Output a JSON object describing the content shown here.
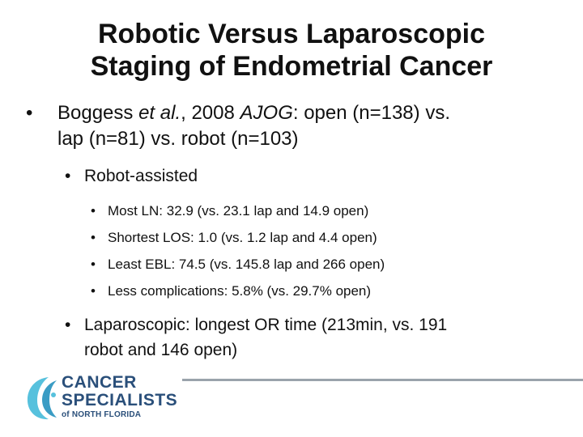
{
  "slide": {
    "title_lines": [
      "Robotic Versus Laparoscopic",
      "Staging of Endometrial Cancer"
    ],
    "bullet_glyph": "•",
    "level1": {
      "prefix": "Boggess ",
      "italic1": "et al.",
      "mid": ", 2008 ",
      "italic2": "AJOG",
      "rest_line1": ": open (n=138) vs.",
      "line2": "lap (n=81) vs. robot (n=103)"
    },
    "level2_robot": "Robot-assisted",
    "level3_items": [
      "Most LN: 32.9 (vs. 23.1 lap and 14.9 open)",
      "Shortest LOS: 1.0 (vs. 1.2 lap and 4.4 open)",
      "Least EBL: 74.5 (vs. 145.8 lap and 266 open)",
      "Less complications: 5.8% (vs. 29.7% open)"
    ],
    "level2_lap_line1": "Laparoscopic: longest OR time (213min, vs.  191",
    "level2_lap_line2": "robot and 146 open)"
  },
  "logo": {
    "line1": "CANCER",
    "line2": "SPECIALISTS",
    "line3": "of NORTH FLORIDA",
    "colors": {
      "text": "#2a4f7a",
      "mark_light": "#57c1dd",
      "mark_dark": "#3a9cc4"
    }
  },
  "colors": {
    "background": "#ffffff",
    "text": "#111111",
    "footer_line": "#9aa3ab"
  }
}
